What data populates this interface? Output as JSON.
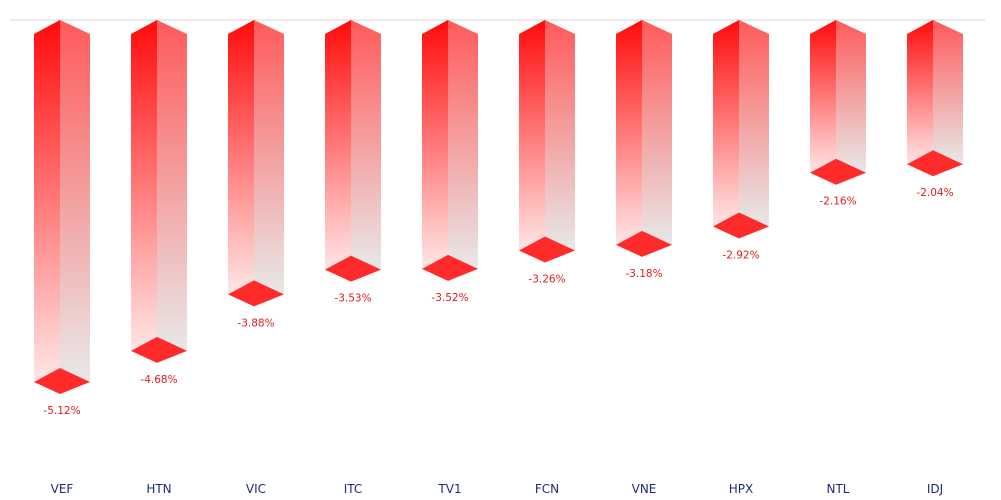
{
  "chart_data": {
    "type": "bar",
    "categories": [
      "VEF",
      "HTN",
      "VIC",
      "ITC",
      "TV1",
      "FCN",
      "VNE",
      "HPX",
      "NTL",
      "IDJ"
    ],
    "values": [
      -5.12,
      -4.68,
      -3.88,
      -3.53,
      -3.52,
      -3.26,
      -3.18,
      -2.92,
      -2.16,
      -2.04
    ],
    "data_labels": [
      "-5.12%",
      "-4.68%",
      "-3.88%",
      "-3.53%",
      "-3.52%",
      "-3.26%",
      "-3.18%",
      "-2.92%",
      "-2.16%",
      "-2.04%"
    ],
    "title": "",
    "xlabel": "",
    "ylabel": "",
    "ylim": [
      -5.12,
      0
    ],
    "orientation": "vertical-3d-downward",
    "grid": false,
    "legend": "none"
  },
  "colors": {
    "bar_top": "#ff0b0b",
    "bar_fade": "#ffe6e6",
    "bar_side_top": "#ff5a5a",
    "bar_side_fade": "#e8e8e8",
    "bar_cap": "#ff2a2a",
    "baseline": "#d6d6d6",
    "tick_text": "#1f2a7a",
    "value_text": "#e31b1b"
  }
}
